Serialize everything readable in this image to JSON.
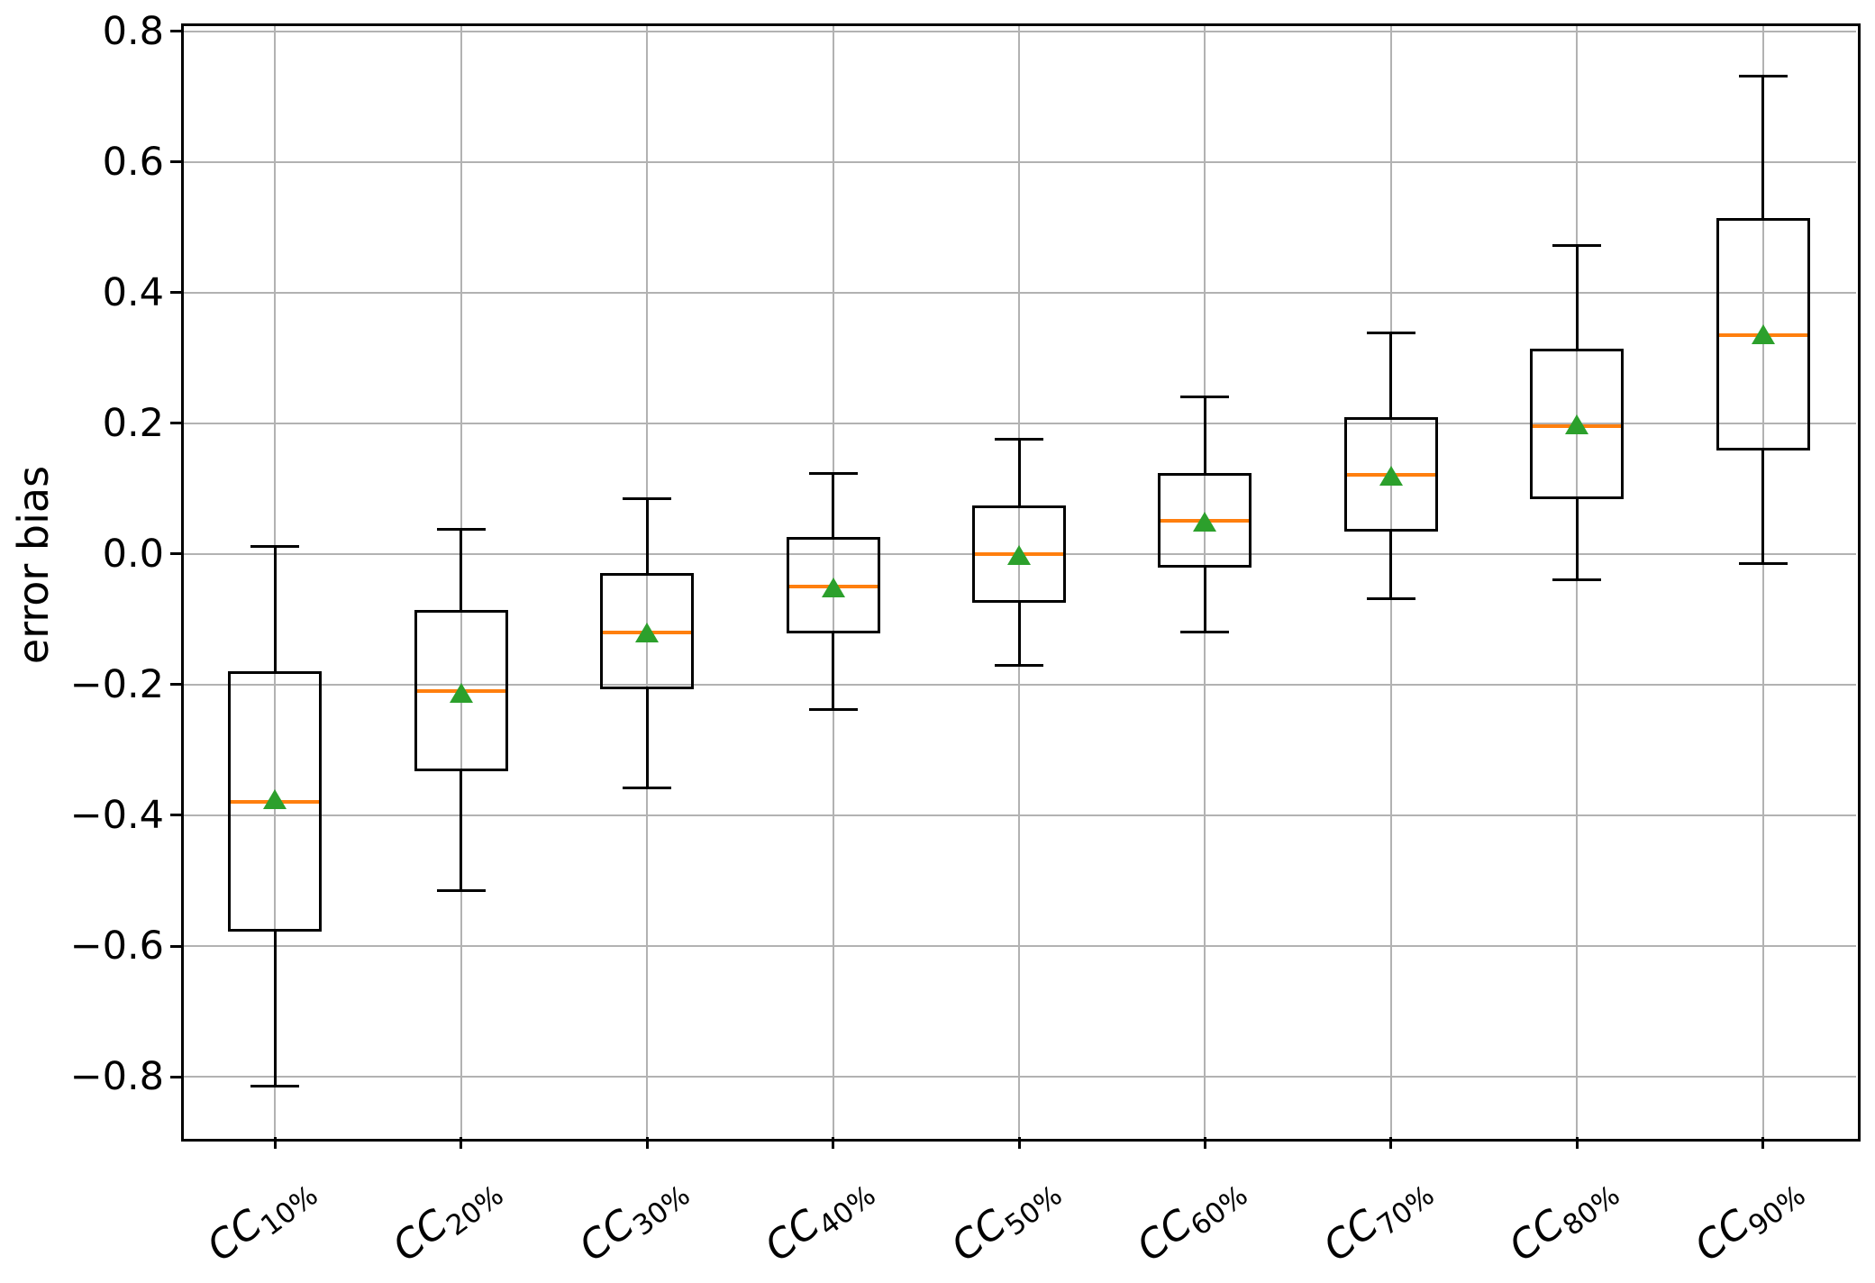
{
  "figure": {
    "title": "",
    "background": "#ffffff"
  },
  "chart_data": {
    "type": "boxplot",
    "title": "",
    "xlabel": "",
    "ylabel": "error bias",
    "grid": true,
    "legend": "none",
    "ylim": [
      -0.8924,
      0.811
    ],
    "yticks": [
      {
        "value": 0.8,
        "label": "0.8"
      },
      {
        "value": 0.6,
        "label": "0.6"
      },
      {
        "value": 0.4,
        "label": "0.4"
      },
      {
        "value": 0.2,
        "label": "0.2"
      },
      {
        "value": 0.0,
        "label": "0.0"
      },
      {
        "value": -0.2,
        "label": "−0.2"
      },
      {
        "value": -0.4,
        "label": "−0.4"
      },
      {
        "value": -0.6,
        "label": "−0.6"
      },
      {
        "value": -0.8,
        "label": "−0.8"
      }
    ],
    "categories": [
      {
        "label": "CC10%",
        "base": "CC",
        "sub": "10%"
      },
      {
        "label": "CC20%",
        "base": "CC",
        "sub": "20%"
      },
      {
        "label": "CC30%",
        "base": "CC",
        "sub": "30%"
      },
      {
        "label": "CC40%",
        "base": "CC",
        "sub": "40%"
      },
      {
        "label": "CC50%",
        "base": "CC",
        "sub": "50%"
      },
      {
        "label": "CC60%",
        "base": "CC",
        "sub": "60%"
      },
      {
        "label": "CC70%",
        "base": "CC",
        "sub": "70%"
      },
      {
        "label": "CC80%",
        "base": "CC",
        "sub": "80%"
      },
      {
        "label": "CC90%",
        "base": "CC",
        "sub": "90%"
      }
    ],
    "boxes": [
      {
        "label": "CC10%",
        "whislo": -0.815,
        "q1": -0.578,
        "med": -0.38,
        "mean": -0.375,
        "q3": -0.18,
        "whishi": 0.012
      },
      {
        "label": "CC20%",
        "whislo": -0.515,
        "q1": -0.332,
        "med": -0.21,
        "mean": -0.212,
        "q3": -0.086,
        "whishi": 0.038
      },
      {
        "label": "CC30%",
        "whislo": -0.358,
        "q1": -0.207,
        "med": -0.12,
        "mean": -0.12,
        "q3": -0.029,
        "whishi": 0.085
      },
      {
        "label": "CC40%",
        "whislo": -0.238,
        "q1": -0.121,
        "med": -0.049,
        "mean": -0.051,
        "q3": 0.026,
        "whishi": 0.124
      },
      {
        "label": "CC50%",
        "whislo": -0.17,
        "q1": -0.074,
        "med": 0.0,
        "mean": -0.002,
        "q3": 0.075,
        "whishi": 0.176
      },
      {
        "label": "CC60%",
        "whislo": -0.119,
        "q1": -0.021,
        "med": 0.051,
        "mean": 0.049,
        "q3": 0.124,
        "whishi": 0.24
      },
      {
        "label": "CC70%",
        "whislo": -0.068,
        "q1": 0.035,
        "med": 0.121,
        "mean": 0.12,
        "q3": 0.209,
        "whishi": 0.339
      },
      {
        "label": "CC80%",
        "whislo": -0.04,
        "q1": 0.084,
        "med": 0.196,
        "mean": 0.198,
        "q3": 0.314,
        "whishi": 0.472
      },
      {
        "label": "CC90%",
        "whislo": -0.014,
        "q1": 0.159,
        "med": 0.335,
        "mean": 0.336,
        "q3": 0.514,
        "whishi": 0.732
      }
    ],
    "colors": {
      "box_line": "#000000",
      "median": "#ff7f0e",
      "mean_marker": "#2ca02c",
      "grid": "#b2b2b2",
      "spine": "#000000"
    },
    "xtick_rotation_deg": 37
  }
}
